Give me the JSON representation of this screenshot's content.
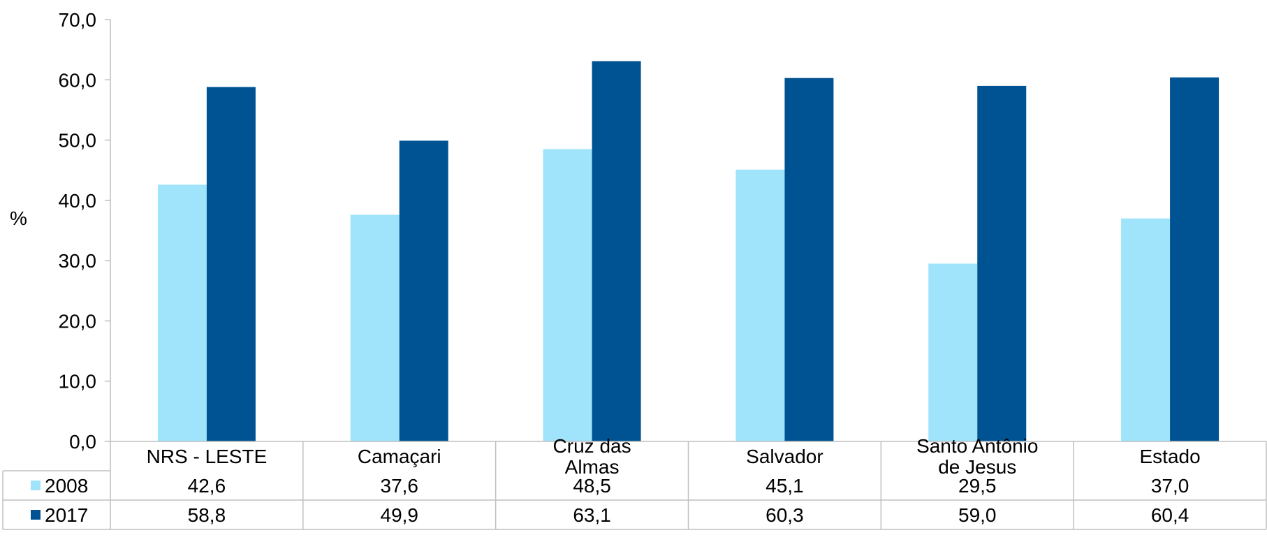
{
  "chart_data": {
    "type": "bar",
    "ylabel": "%",
    "ylim": [
      0,
      70
    ],
    "yticks": [
      "0,0",
      "10,0",
      "20,0",
      "30,0",
      "40,0",
      "50,0",
      "60,0",
      "70,0"
    ],
    "categories": [
      [
        "NRS - LESTE"
      ],
      [
        "Camaçari"
      ],
      [
        "Cruz das",
        "Almas"
      ],
      [
        "Salvador"
      ],
      [
        "Santo Antônio",
        "de Jesus"
      ],
      [
        "Estado"
      ]
    ],
    "series": [
      {
        "name": "2008",
        "color": "#9fe4fa",
        "values": [
          42.6,
          37.6,
          48.5,
          45.1,
          29.5,
          37.0
        ],
        "labels": [
          "42,6",
          "37,6",
          "48,5",
          "45,1",
          "29,5",
          "37,0"
        ]
      },
      {
        "name": "2017",
        "color": "#005392",
        "values": [
          58.8,
          49.9,
          63.1,
          60.3,
          59.0,
          60.4
        ],
        "labels": [
          "58,8",
          "49,9",
          "63,1",
          "60,3",
          "59,0",
          "60,4"
        ]
      }
    ],
    "grid": false,
    "legend": "data-table"
  }
}
